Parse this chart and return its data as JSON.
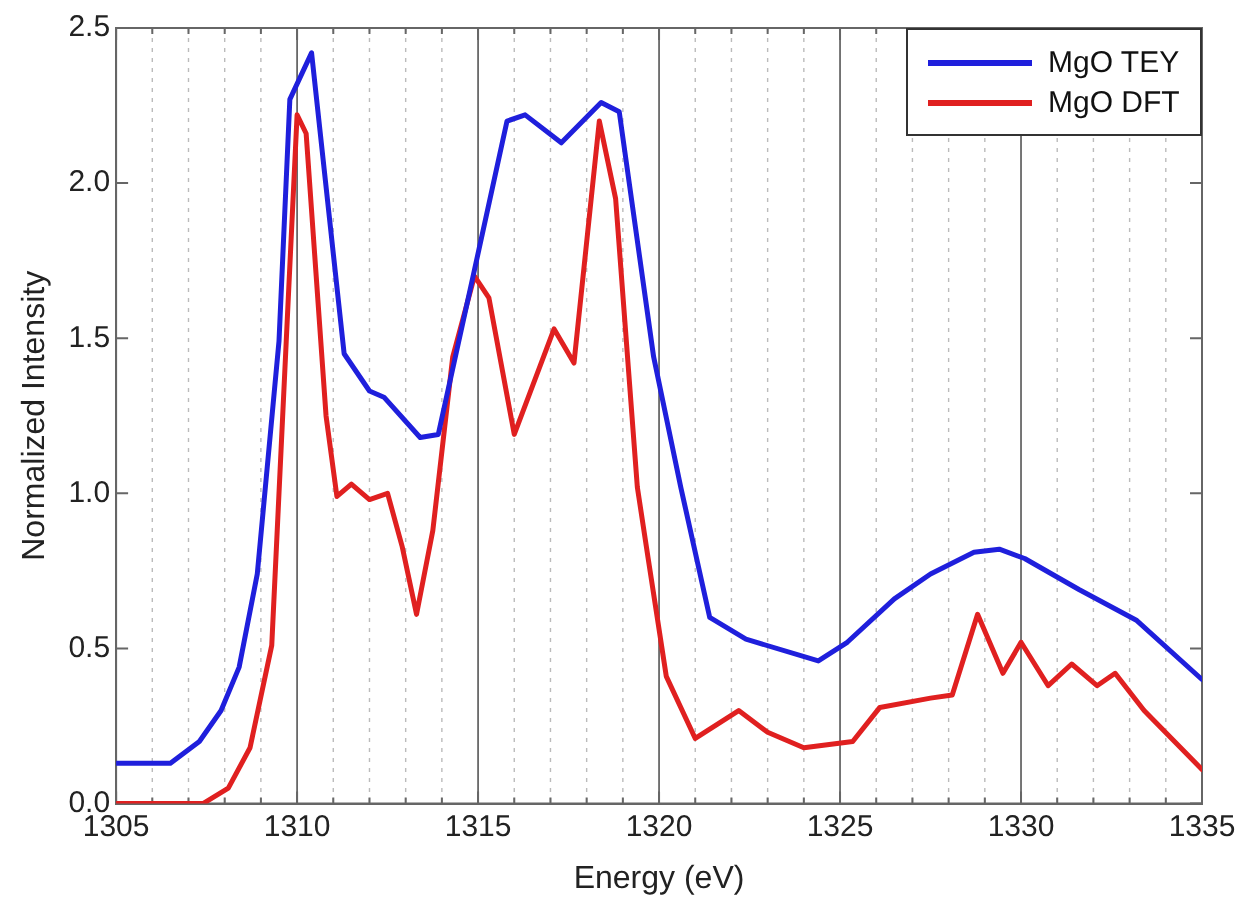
{
  "chart_data": {
    "type": "line",
    "xlabel": "Energy (eV)",
    "ylabel": "Normalized Intensity",
    "xlim": [
      1305,
      1335
    ],
    "xticks": [
      1305,
      {
        "value": 1306,
        "label": null
      },
      {
        "value": 1307,
        "label": null
      },
      {
        "value": 1308,
        "label": null
      },
      {
        "value": 1309,
        "label": null
      },
      1310,
      {
        "value": 1311,
        "label": null
      },
      {
        "value": 1312,
        "label": null
      },
      {
        "value": 1313,
        "label": null
      },
      {
        "value": 1314,
        "label": null
      },
      1315,
      {
        "value": 1316,
        "label": null
      },
      {
        "value": 1317,
        "label": null
      },
      {
        "value": 1318,
        "label": null
      },
      {
        "value": 1319,
        "label": null
      },
      1320,
      {
        "value": 1321,
        "label": null
      },
      {
        "value": 1322,
        "label": null
      },
      {
        "value": 1323,
        "label": null
      },
      {
        "value": 1324,
        "label": null
      },
      1325,
      {
        "value": 1326,
        "label": null
      },
      {
        "value": 1327,
        "label": null
      },
      {
        "value": 1328,
        "label": null
      },
      {
        "value": 1329,
        "label": null
      },
      1330,
      {
        "value": 1331,
        "label": null
      },
      {
        "value": 1332,
        "label": null
      },
      {
        "value": 1333,
        "label": null
      },
      {
        "value": 1334,
        "label": null
      },
      1335
    ],
    "ylim": [
      0,
      2.5
    ],
    "yticks": [
      {
        "value": 0,
        "label": "0.0"
      },
      {
        "value": 0.5,
        "label": "0.5"
      },
      {
        "value": 1,
        "label": "1.0"
      },
      {
        "value": 1.5,
        "label": "1.5"
      },
      {
        "value": 2,
        "label": "2.0"
      },
      {
        "value": 2.5,
        "label": "2.5"
      }
    ],
    "grid": "x",
    "legend": "top right",
    "marker": "none",
    "line_style": "solid",
    "series": [
      {
        "name": "MgO TEY",
        "color": "#1f1fdc",
        "x": [
          1305,
          1306.5,
          1307.3,
          1307.9,
          1308.4,
          1308.9,
          1309.5,
          1309.8,
          1310.4,
          1311.3,
          1312,
          1312.4,
          1313.4,
          1313.9,
          1314.9,
          1315.8,
          1316.3,
          1317.3,
          1318.4,
          1318.9,
          1319.85,
          1320.6,
          1321.4,
          1322.4,
          1324.4,
          1325.2,
          1326.5,
          1327.5,
          1328.7,
          1329.4,
          1330.1,
          1331.6,
          1333.2,
          1335
        ],
        "values": [
          0.13,
          0.13,
          0.2,
          0.3,
          0.44,
          0.74,
          1.49,
          2.27,
          2.42,
          1.45,
          1.33,
          1.31,
          1.18,
          1.19,
          1.72,
          2.2,
          2.22,
          2.13,
          2.26,
          2.23,
          1.44,
          1.02,
          0.6,
          0.53,
          0.46,
          0.52,
          0.66,
          0.74,
          0.81,
          0.82,
          0.79,
          0.69,
          0.59,
          0.4
        ]
      },
      {
        "name": "MgO DFT",
        "color": "#e02020",
        "x": [
          1305,
          1307.4,
          1308.1,
          1308.7,
          1309.3,
          1309.7,
          1310,
          1310.25,
          1310.8,
          1311.1,
          1311.5,
          1312,
          1312.5,
          1312.9,
          1313.3,
          1313.75,
          1314.3,
          1314.9,
          1315.3,
          1316,
          1317.1,
          1317.65,
          1318.35,
          1318.8,
          1319.4,
          1319.7,
          1320.2,
          1321,
          1322.2,
          1323,
          1324,
          1325.35,
          1326.1,
          1327.5,
          1328.1,
          1328.8,
          1329.5,
          1330,
          1330.75,
          1331.4,
          1332.1,
          1332.6,
          1333.4,
          1335
        ],
        "values": [
          0,
          0,
          0.05,
          0.18,
          0.51,
          1.49,
          2.22,
          2.16,
          1.25,
          0.99,
          1.03,
          0.98,
          1,
          0.83,
          0.61,
          0.88,
          1.44,
          1.7,
          1.63,
          1.19,
          1.53,
          1.42,
          2.2,
          1.95,
          1.02,
          0.79,
          0.41,
          0.21,
          0.3,
          0.23,
          0.18,
          0.2,
          0.31,
          0.34,
          0.35,
          0.61,
          0.42,
          0.52,
          0.38,
          0.45,
          0.38,
          0.42,
          0.3,
          0.11
        ]
      }
    ]
  }
}
